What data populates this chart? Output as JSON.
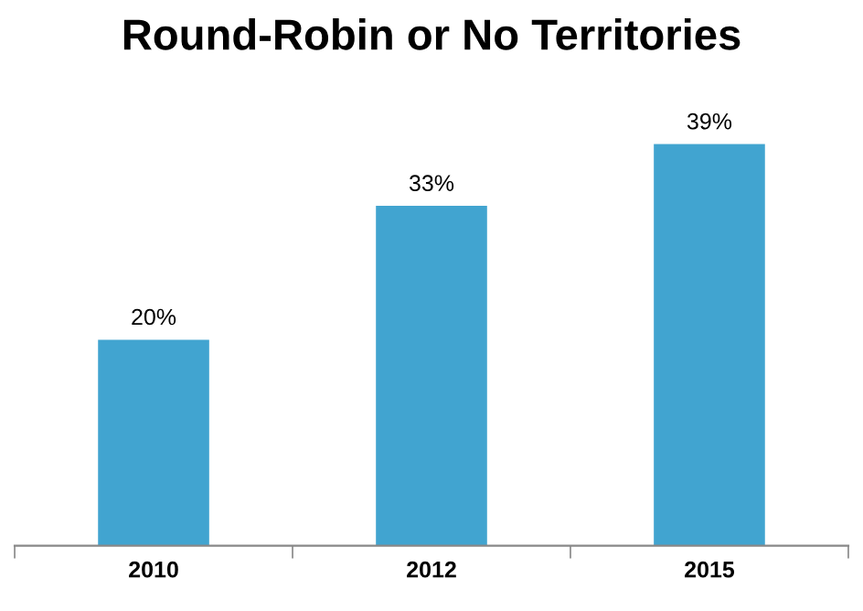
{
  "chart_data": {
    "type": "bar",
    "title": "Round-Robin or No Territories",
    "categories": [
      "2010",
      "2012",
      "2015"
    ],
    "values": [
      20,
      33,
      39
    ],
    "value_labels": [
      "20%",
      "33%",
      "39%"
    ],
    "color": "#41a4d0",
    "grid": false,
    "legend": false
  }
}
